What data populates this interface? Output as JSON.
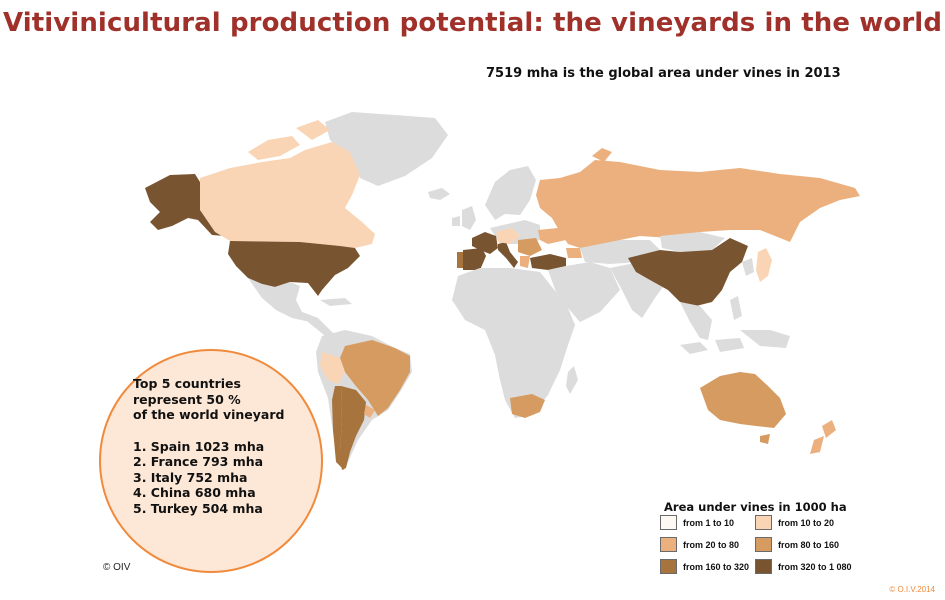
{
  "title": "Vitivinicultural production potential: the vineyards in the world",
  "subtitle": "7519 mha is the global area under vines in 2013",
  "colors": {
    "no_data": "#dcdcdc",
    "c1": "#fff9f3",
    "c2": "#f9d5b5",
    "c3": "#ecb07e",
    "c4": "#d69b60",
    "c5": "#a8743e",
    "c6": "#785430",
    "title": "#a0302a",
    "accent": "#f08a3c"
  },
  "callout": {
    "heading": [
      "Top 5 countries",
      "represent 50 %",
      "of the world vineyard"
    ],
    "items": [
      "1. Spain 1023 mha",
      "2. France 793 mha",
      "3. Italy 752 mha",
      "4. China 680 mha",
      "5. Turkey 504 mha"
    ]
  },
  "legend": {
    "title": "Area under vines in 1000 ha",
    "items": [
      {
        "label": "from 1 to 10",
        "color": "#fff9f3"
      },
      {
        "label": "from 10 to 20",
        "color": "#f9d5b5"
      },
      {
        "label": "from 20 to 80",
        "color": "#ecb07e"
      },
      {
        "label": "from 80 to 160",
        "color": "#d69b60"
      },
      {
        "label": "from 160 to 320",
        "color": "#a8743e"
      },
      {
        "label": "from 320 to 1 080",
        "color": "#785430"
      }
    ]
  },
  "copyright": "© OIV",
  "footer": "© O.I.V.2014"
}
